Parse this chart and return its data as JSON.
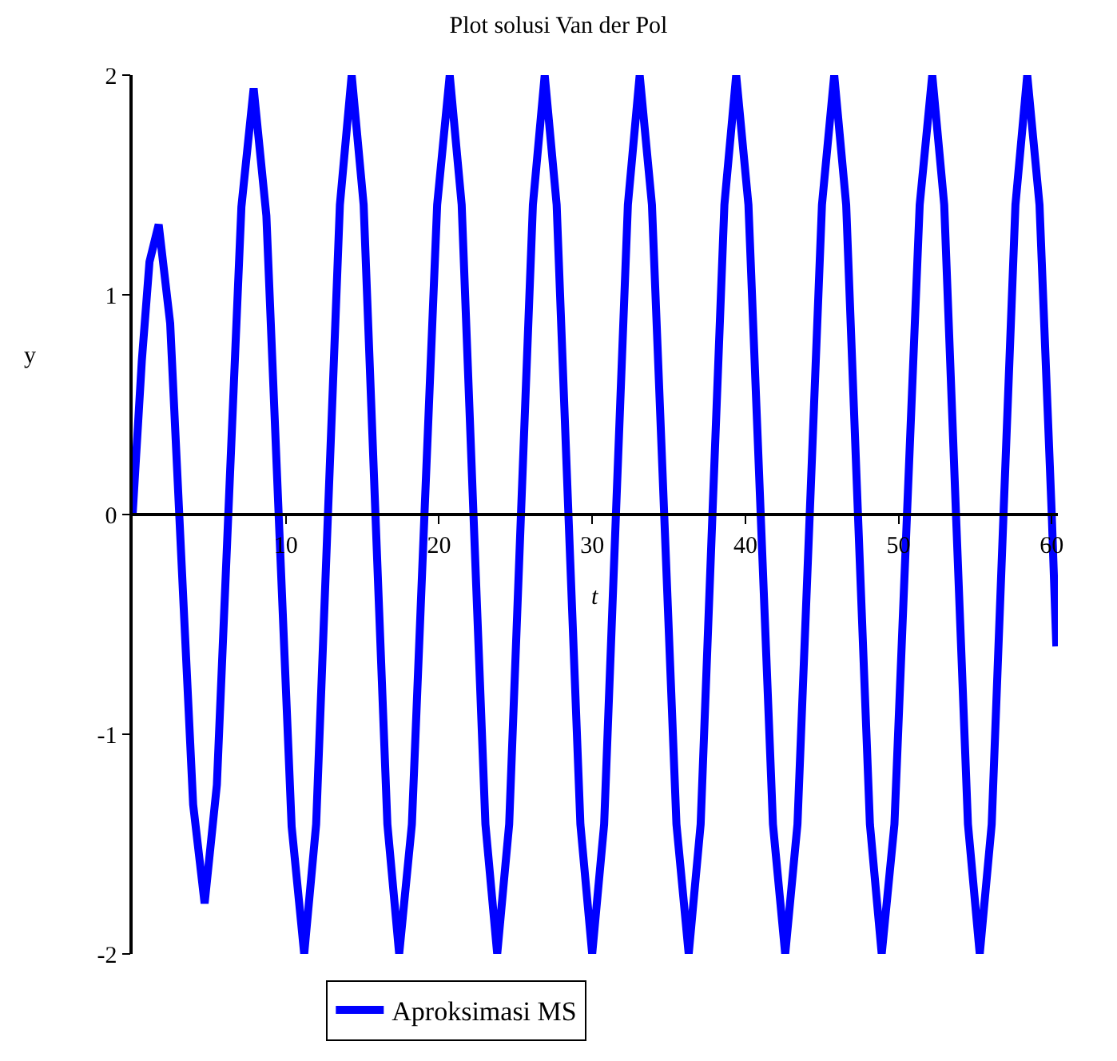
{
  "chart_data": {
    "type": "line",
    "title": "Plot solusi Van der Pol",
    "xlabel": "t",
    "ylabel": "y",
    "xlim": [
      0,
      60.4
    ],
    "ylim": [
      -2,
      2
    ],
    "xticks": [
      10,
      20,
      30,
      40,
      50,
      60
    ],
    "yticks": [
      -2,
      -1,
      0,
      1,
      2
    ],
    "grid": false,
    "legend": "bottom",
    "marker": "none",
    "line_style": "solid",
    "series": [
      {
        "name": "Aproksimasi MS",
        "color": "#0000ff",
        "x": [
          0,
          0.6,
          1.1,
          1.7,
          2.45,
          3.2,
          3.95,
          4.7,
          5.5,
          6.3,
          7.1,
          7.9,
          8.73,
          9.55,
          10.38,
          11.2,
          11.98,
          12.75,
          13.53,
          14.3,
          15.08,
          15.85,
          16.63,
          17.4,
          18.23,
          19.05,
          19.88,
          20.7,
          21.48,
          22.25,
          23.03,
          23.8,
          24.58,
          25.35,
          26.13,
          26.9,
          27.68,
          28.45,
          29.23,
          30,
          30.78,
          31.55,
          32.33,
          33.1,
          33.9,
          34.7,
          35.5,
          36.3,
          37.08,
          37.85,
          38.63,
          39.4,
          40.2,
          41,
          41.8,
          42.6,
          43.4,
          44.2,
          45,
          45.8,
          46.58,
          47.35,
          48.13,
          48.9,
          49.73,
          50.55,
          51.38,
          52.2,
          52.98,
          53.75,
          54.53,
          55.3,
          56.08,
          56.85,
          57.63,
          58.4,
          59.2,
          60,
          60.3
        ],
        "values": [
          0,
          0.7,
          1.15,
          1.32,
          0.87,
          -0.23,
          -1.32,
          -1.77,
          -1.23,
          0.09,
          1.4,
          1.94,
          1.36,
          -0.03,
          -1.42,
          -2,
          -1.41,
          0,
          1.41,
          2,
          1.41,
          0,
          -1.41,
          -2,
          -1.41,
          0,
          1.41,
          2,
          1.41,
          0,
          -1.41,
          -2,
          -1.41,
          0,
          1.41,
          2,
          1.41,
          0,
          -1.41,
          -2,
          -1.41,
          0,
          1.41,
          2,
          1.41,
          0,
          -1.41,
          -2,
          -1.41,
          0,
          1.41,
          2,
          1.41,
          0,
          -1.41,
          -2,
          -1.41,
          0,
          1.41,
          2,
          1.41,
          0,
          -1.41,
          -2,
          -1.41,
          0,
          1.41,
          2,
          1.41,
          0,
          -1.41,
          -2,
          -1.41,
          0,
          1.41,
          2,
          1.41,
          0,
          -0.6
        ]
      }
    ]
  }
}
